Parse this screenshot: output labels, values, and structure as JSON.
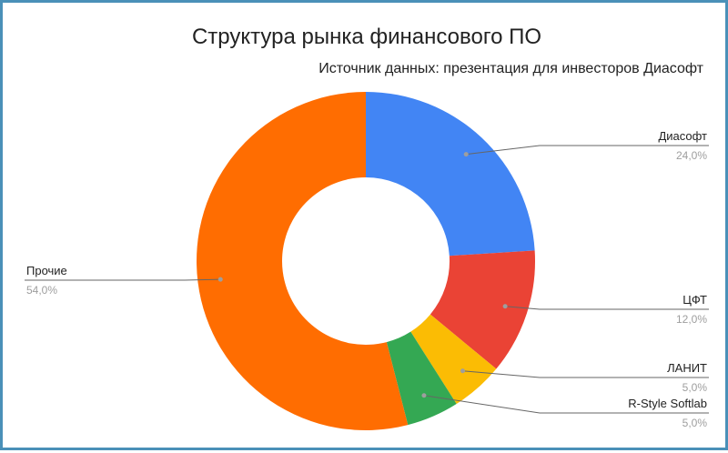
{
  "chart_data": {
    "type": "pie",
    "donut": true,
    "title": "Структура рынка финансового ПО",
    "subtitle": "Источник данных: презентация для инвесторов Диасофт",
    "slices": [
      {
        "label": "Диасофт",
        "value": 24.0,
        "value_label": "24,0%",
        "color": "#4285f4"
      },
      {
        "label": "ЦФТ",
        "value": 12.0,
        "value_label": "12,0%",
        "color": "#ea4335"
      },
      {
        "label": "ЛАНИТ",
        "value": 5.0,
        "value_label": "5,0%",
        "color": "#fbbc04"
      },
      {
        "label": "R-Style Softlab",
        "value": 5.0,
        "value_label": "5,0%",
        "color": "#34a853"
      },
      {
        "label": "Прочие",
        "value": 54.0,
        "value_label": "54,0%",
        "color": "#ff6d01"
      }
    ]
  }
}
